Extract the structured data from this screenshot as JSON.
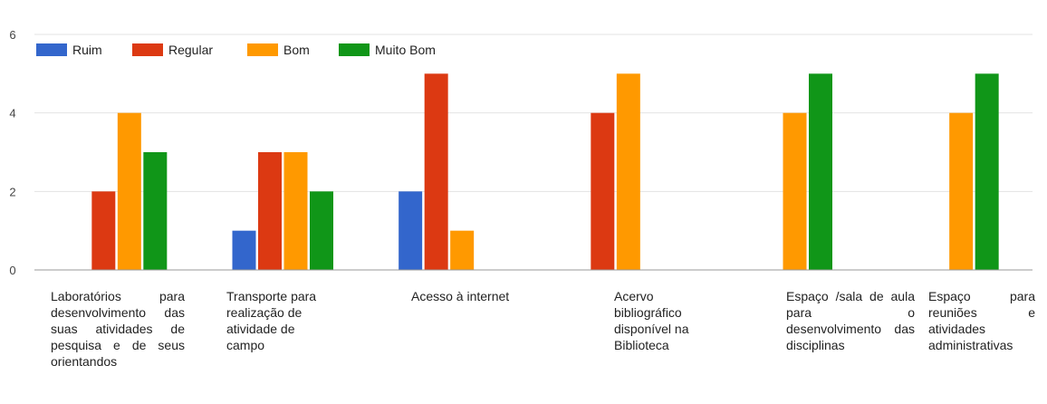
{
  "chart_data": {
    "type": "bar",
    "categories": [
      "Laboratórios para desenvolvimento das suas atividades de pesquisa e de seus orientandos",
      "Transporte para realização de atividade de campo",
      "Acesso à internet",
      "Acervo bibliográfico disponível na Biblioteca",
      "Espaço /sala de aula para o desenvolvimento das disciplinas",
      "Espaço para reuniões e atividades administrativas"
    ],
    "series": [
      {
        "name": "Ruim",
        "color": "#3366cc",
        "values": [
          0,
          1,
          2,
          0,
          0,
          0
        ]
      },
      {
        "name": "Regular",
        "color": "#dc3912",
        "values": [
          2,
          3,
          5,
          4,
          0,
          0
        ]
      },
      {
        "name": "Bom",
        "color": "#ff9900",
        "values": [
          4,
          3,
          1,
          5,
          4,
          4
        ]
      },
      {
        "name": "Muito Bom",
        "color": "#109618",
        "values": [
          3,
          2,
          0,
          0,
          5,
          5
        ]
      }
    ],
    "y_ticks": [
      "0",
      "2",
      "4",
      "6"
    ],
    "ylim": [
      0,
      6
    ],
    "grid": true,
    "legend_position": "top-left"
  }
}
